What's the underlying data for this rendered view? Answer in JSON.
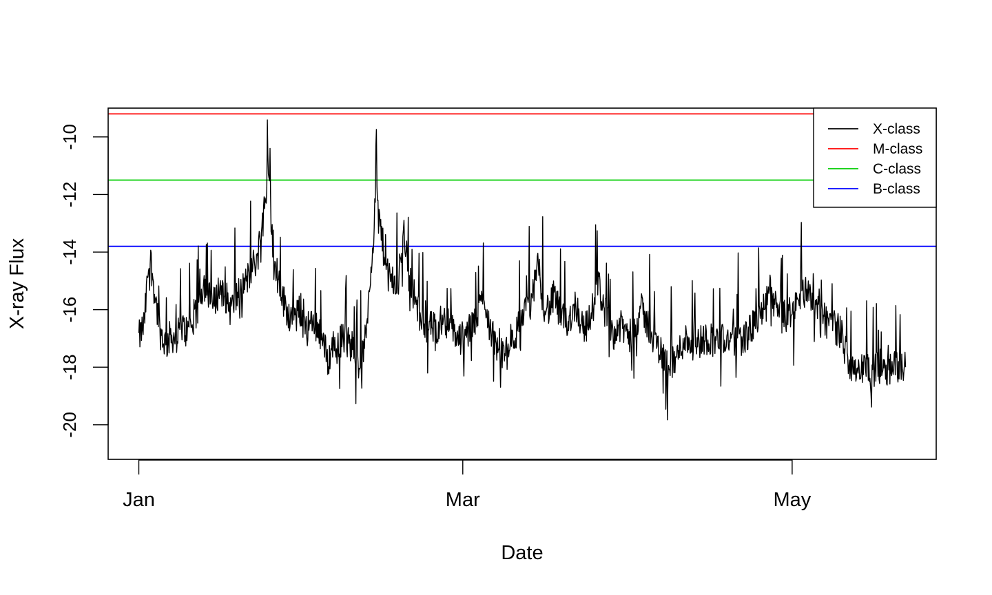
{
  "chart_data": {
    "type": "line",
    "title": "",
    "xlabel": "Date",
    "ylabel": "X-ray Flux",
    "x_range": [
      "2016-01-01",
      "2016-05-24"
    ],
    "ylim": [
      -21.2,
      -9.0
    ],
    "x_ticks": [
      {
        "date": "2016-01-01",
        "label": "Jan"
      },
      {
        "date": "2016-03-01",
        "label": "Mar"
      },
      {
        "date": "2016-05-01",
        "label": "May"
      }
    ],
    "y_ticks": [
      {
        "value": -10,
        "label": "-10"
      },
      {
        "value": -12,
        "label": "-12"
      },
      {
        "value": -14,
        "label": "-14"
      },
      {
        "value": -16,
        "label": "-16"
      },
      {
        "value": -18,
        "label": "-18"
      },
      {
        "value": -20,
        "label": "-20"
      }
    ],
    "grid": false,
    "legend_position": "top-right",
    "legend": [
      {
        "label": "X-class",
        "color": "#000000"
      },
      {
        "label": "M-class",
        "color": "#ff0000"
      },
      {
        "label": "C-class",
        "color": "#00cd00"
      },
      {
        "label": "B-class",
        "color": "#0000ff"
      }
    ],
    "thresholds": [
      {
        "name": "M-class",
        "value": -9.2,
        "color": "#ff0000"
      },
      {
        "name": "C-class",
        "value": -11.5,
        "color": "#00cd00"
      },
      {
        "name": "B-class",
        "value": -13.8,
        "color": "#0000ff"
      }
    ],
    "series": [
      {
        "name": "X-class",
        "color": "#000000",
        "points": [
          [
            "2016-01-01",
            -17.0
          ],
          [
            "2016-01-02",
            -16.5
          ],
          [
            "2016-01-03",
            -14.0
          ],
          [
            "2016-01-04",
            -15.5
          ],
          [
            "2016-01-05",
            -16.8
          ],
          [
            "2016-01-06",
            -17.2
          ],
          [
            "2016-01-07",
            -16.9
          ],
          [
            "2016-01-08",
            -17.0
          ],
          [
            "2016-01-09",
            -16.6
          ],
          [
            "2016-01-10",
            -16.8
          ],
          [
            "2016-01-11",
            -16.5
          ],
          [
            "2016-01-12",
            -16.0
          ],
          [
            "2016-01-13",
            -15.0
          ],
          [
            "2016-01-14",
            -15.6
          ],
          [
            "2016-01-15",
            -15.8
          ],
          [
            "2016-01-16",
            -15.2
          ],
          [
            "2016-01-17",
            -15.5
          ],
          [
            "2016-01-18",
            -16.0
          ],
          [
            "2016-01-19",
            -15.6
          ],
          [
            "2016-01-20",
            -15.3
          ],
          [
            "2016-01-21",
            -15.0
          ],
          [
            "2016-01-22",
            -14.5
          ],
          [
            "2016-01-23",
            -14.2
          ],
          [
            "2016-01-24",
            -12.5
          ],
          [
            "2016-01-25",
            -11.5
          ],
          [
            "2016-01-26",
            -14.0
          ],
          [
            "2016-01-27",
            -15.2
          ],
          [
            "2016-01-28",
            -15.8
          ],
          [
            "2016-01-29",
            -16.2
          ],
          [
            "2016-01-30",
            -16.3
          ],
          [
            "2016-01-31",
            -16.0
          ],
          [
            "2016-02-01",
            -16.4
          ],
          [
            "2016-02-02",
            -16.6
          ],
          [
            "2016-02-03",
            -16.5
          ],
          [
            "2016-02-04",
            -17.0
          ],
          [
            "2016-02-05",
            -17.8
          ],
          [
            "2016-02-06",
            -17.2
          ],
          [
            "2016-02-07",
            -17.1
          ],
          [
            "2016-02-08",
            -17.0
          ],
          [
            "2016-02-09",
            -17.2
          ],
          [
            "2016-02-10",
            -17.3
          ],
          [
            "2016-02-11",
            -18.0
          ],
          [
            "2016-02-12",
            -17.0
          ],
          [
            "2016-02-13",
            -14.5
          ],
          [
            "2016-02-14",
            -12.0
          ],
          [
            "2016-02-15",
            -13.5
          ],
          [
            "2016-02-16",
            -14.8
          ],
          [
            "2016-02-17",
            -15.0
          ],
          [
            "2016-02-18",
            -15.3
          ],
          [
            "2016-02-19",
            -13.0
          ],
          [
            "2016-02-20",
            -14.8
          ],
          [
            "2016-02-21",
            -15.5
          ],
          [
            "2016-02-22",
            -16.2
          ],
          [
            "2016-02-23",
            -16.5
          ],
          [
            "2016-02-24",
            -16.6
          ],
          [
            "2016-02-25",
            -16.7
          ],
          [
            "2016-02-26",
            -16.3
          ],
          [
            "2016-02-27",
            -16.4
          ],
          [
            "2016-02-28",
            -16.7
          ],
          [
            "2016-02-29",
            -16.9
          ],
          [
            "2016-03-01",
            -17.0
          ],
          [
            "2016-03-02",
            -16.8
          ],
          [
            "2016-03-03",
            -16.5
          ],
          [
            "2016-03-04",
            -16.0
          ],
          [
            "2016-03-05",
            -15.5
          ],
          [
            "2016-03-06",
            -16.6
          ],
          [
            "2016-03-07",
            -17.2
          ],
          [
            "2016-03-08",
            -17.5
          ],
          [
            "2016-03-09",
            -17.6
          ],
          [
            "2016-03-10",
            -17.0
          ],
          [
            "2016-03-11",
            -16.8
          ],
          [
            "2016-03-12",
            -16.2
          ],
          [
            "2016-03-13",
            -16.0
          ],
          [
            "2016-03-14",
            -15.5
          ],
          [
            "2016-03-15",
            -14.5
          ],
          [
            "2016-03-16",
            -15.8
          ],
          [
            "2016-03-17",
            -16.0
          ],
          [
            "2016-03-18",
            -15.5
          ],
          [
            "2016-03-19",
            -16.2
          ],
          [
            "2016-03-20",
            -16.5
          ],
          [
            "2016-03-21",
            -16.2
          ],
          [
            "2016-03-22",
            -15.8
          ],
          [
            "2016-03-23",
            -16.5
          ],
          [
            "2016-03-24",
            -16.6
          ],
          [
            "2016-03-25",
            -16.0
          ],
          [
            "2016-03-26",
            -15.0
          ],
          [
            "2016-03-27",
            -15.8
          ],
          [
            "2016-03-28",
            -16.5
          ],
          [
            "2016-03-29",
            -16.8
          ],
          [
            "2016-03-30",
            -16.6
          ],
          [
            "2016-03-31",
            -16.7
          ],
          [
            "2016-04-01",
            -16.9
          ],
          [
            "2016-04-02",
            -16.5
          ],
          [
            "2016-04-03",
            -16.0
          ],
          [
            "2016-04-04",
            -16.4
          ],
          [
            "2016-04-05",
            -16.8
          ],
          [
            "2016-04-06",
            -17.2
          ],
          [
            "2016-04-07",
            -17.6
          ],
          [
            "2016-04-08",
            -17.8
          ],
          [
            "2016-04-09",
            -17.9
          ],
          [
            "2016-04-10",
            -17.5
          ],
          [
            "2016-04-11",
            -17.0
          ],
          [
            "2016-04-12",
            -17.1
          ],
          [
            "2016-04-13",
            -17.2
          ],
          [
            "2016-04-14",
            -17.1
          ],
          [
            "2016-04-15",
            -17.0
          ],
          [
            "2016-04-16",
            -17.0
          ],
          [
            "2016-04-17",
            -17.1
          ],
          [
            "2016-04-18",
            -17.0
          ],
          [
            "2016-04-19",
            -17.0
          ],
          [
            "2016-04-20",
            -17.1
          ],
          [
            "2016-04-21",
            -17.0
          ],
          [
            "2016-04-22",
            -17.0
          ],
          [
            "2016-04-23",
            -16.8
          ],
          [
            "2016-04-24",
            -16.5
          ],
          [
            "2016-04-25",
            -16.2
          ],
          [
            "2016-04-26",
            -16.0
          ],
          [
            "2016-04-27",
            -15.2
          ],
          [
            "2016-04-28",
            -16.0
          ],
          [
            "2016-04-29",
            -16.3
          ],
          [
            "2016-04-30",
            -16.2
          ],
          [
            "2016-05-01",
            -16.0
          ],
          [
            "2016-05-02",
            -15.8
          ],
          [
            "2016-05-03",
            -15.5
          ],
          [
            "2016-05-04",
            -15.2
          ],
          [
            "2016-05-05",
            -15.8
          ],
          [
            "2016-05-06",
            -16.2
          ],
          [
            "2016-05-07",
            -16.5
          ],
          [
            "2016-05-08",
            -16.3
          ],
          [
            "2016-05-09",
            -16.6
          ],
          [
            "2016-05-10",
            -16.8
          ],
          [
            "2016-05-11",
            -17.5
          ],
          [
            "2016-05-12",
            -17.9
          ],
          [
            "2016-05-13",
            -18.0
          ],
          [
            "2016-05-14",
            -18.1
          ],
          [
            "2016-05-15",
            -18.0
          ],
          [
            "2016-05-16",
            -18.2
          ],
          [
            "2016-05-17",
            -18.0
          ],
          [
            "2016-05-18",
            -17.9
          ],
          [
            "2016-05-19",
            -18.1
          ],
          [
            "2016-05-20",
            -18.0
          ],
          [
            "2016-05-21",
            -17.9
          ],
          [
            "2016-05-22",
            -18.0
          ]
        ]
      }
    ]
  }
}
